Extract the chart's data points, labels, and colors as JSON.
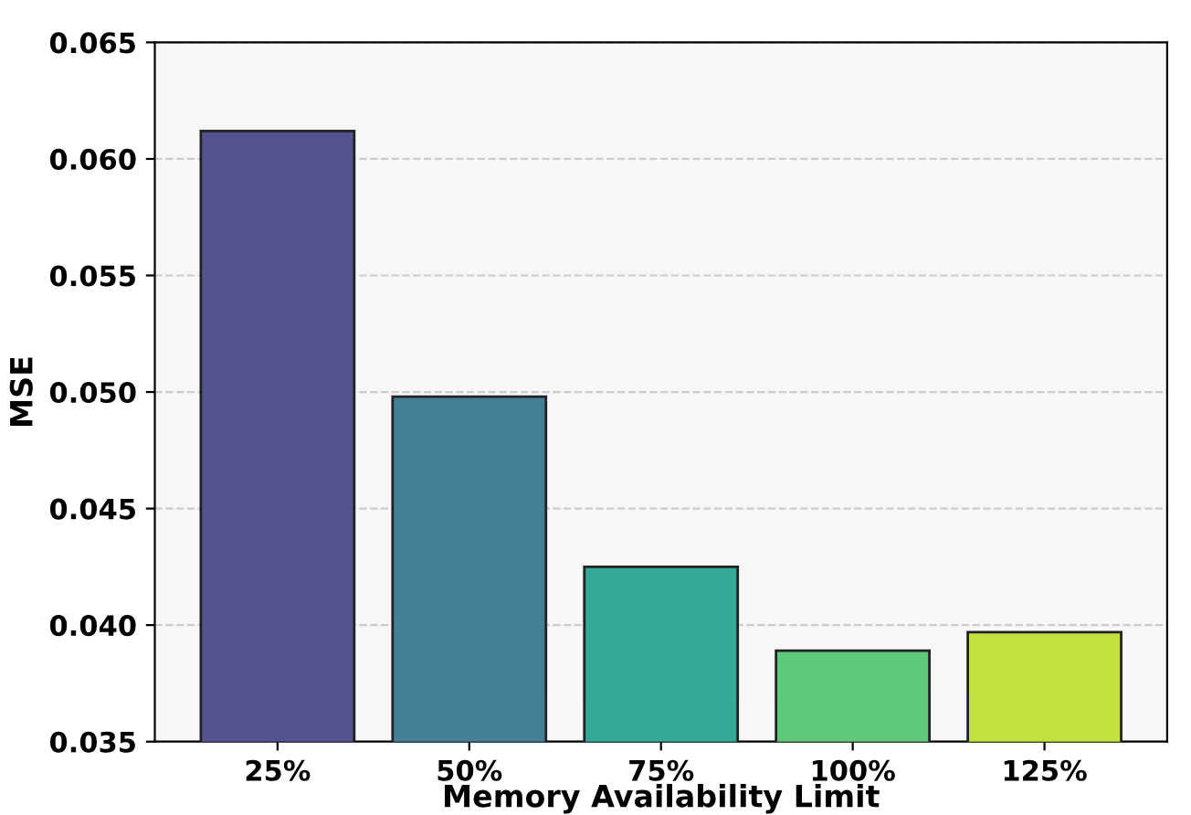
{
  "chart_data": {
    "type": "bar",
    "xlabel": "Memory Availability Limit",
    "ylabel": "MSE",
    "categories": [
      "25%",
      "50%",
      "75%",
      "100%",
      "125%"
    ],
    "values": [
      0.0612,
      0.0498,
      0.0425,
      0.0389,
      0.0397
    ],
    "colors": [
      "#54528f",
      "#437f95",
      "#34a996",
      "#5fc97a",
      "#c1e13f"
    ],
    "ylim": [
      0.035,
      0.065
    ],
    "yticks": [
      {
        "value": 0.035,
        "label": "0.035"
      },
      {
        "value": 0.04,
        "label": "0.040"
      },
      {
        "value": 0.045,
        "label": "0.045"
      },
      {
        "value": 0.05,
        "label": "0.050"
      },
      {
        "value": 0.055,
        "label": "0.055"
      },
      {
        "value": 0.06,
        "label": "0.060"
      },
      {
        "value": 0.065,
        "label": "0.065"
      }
    ],
    "grid": "y"
  }
}
